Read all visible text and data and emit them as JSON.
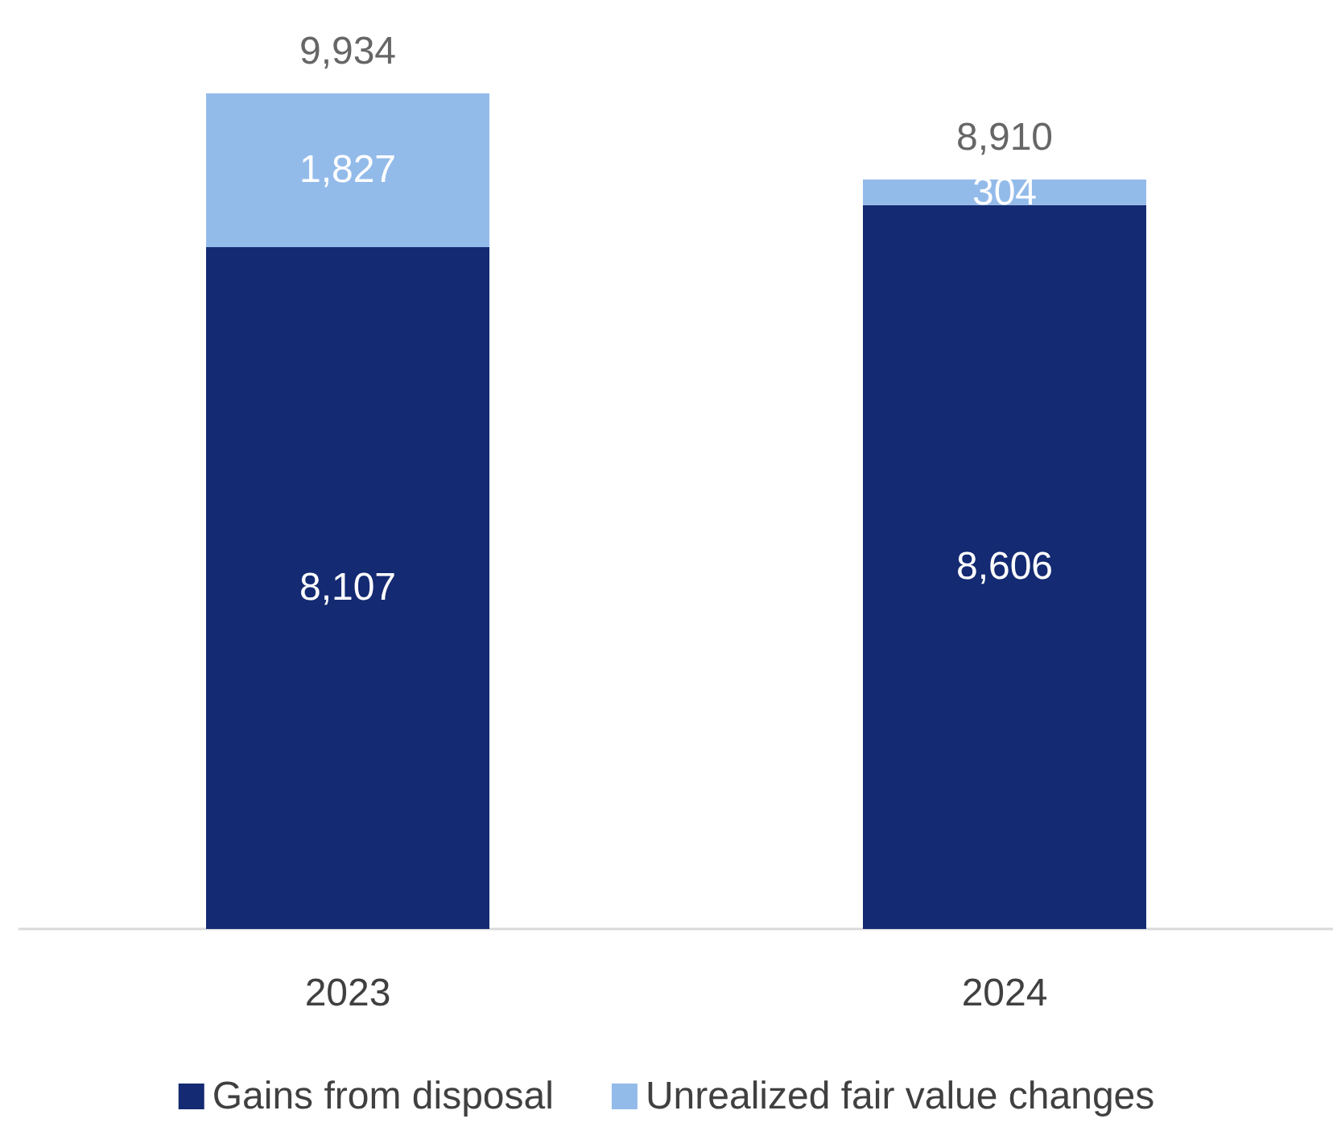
{
  "chart_data": {
    "type": "bar",
    "stacked": true,
    "categories": [
      "2023",
      "2024"
    ],
    "series": [
      {
        "name": "Gains from disposal",
        "color": "#142a72",
        "values": [
          8107,
          8606
        ],
        "value_labels": [
          "8,107",
          "8,606"
        ]
      },
      {
        "name": "Unrealized fair value changes",
        "color": "#93bbea",
        "values": [
          1827,
          304
        ],
        "value_labels": [
          "1,827",
          "304"
        ]
      }
    ],
    "totals": [
      "9,934",
      "8,910"
    ],
    "legend": "bottom"
  }
}
